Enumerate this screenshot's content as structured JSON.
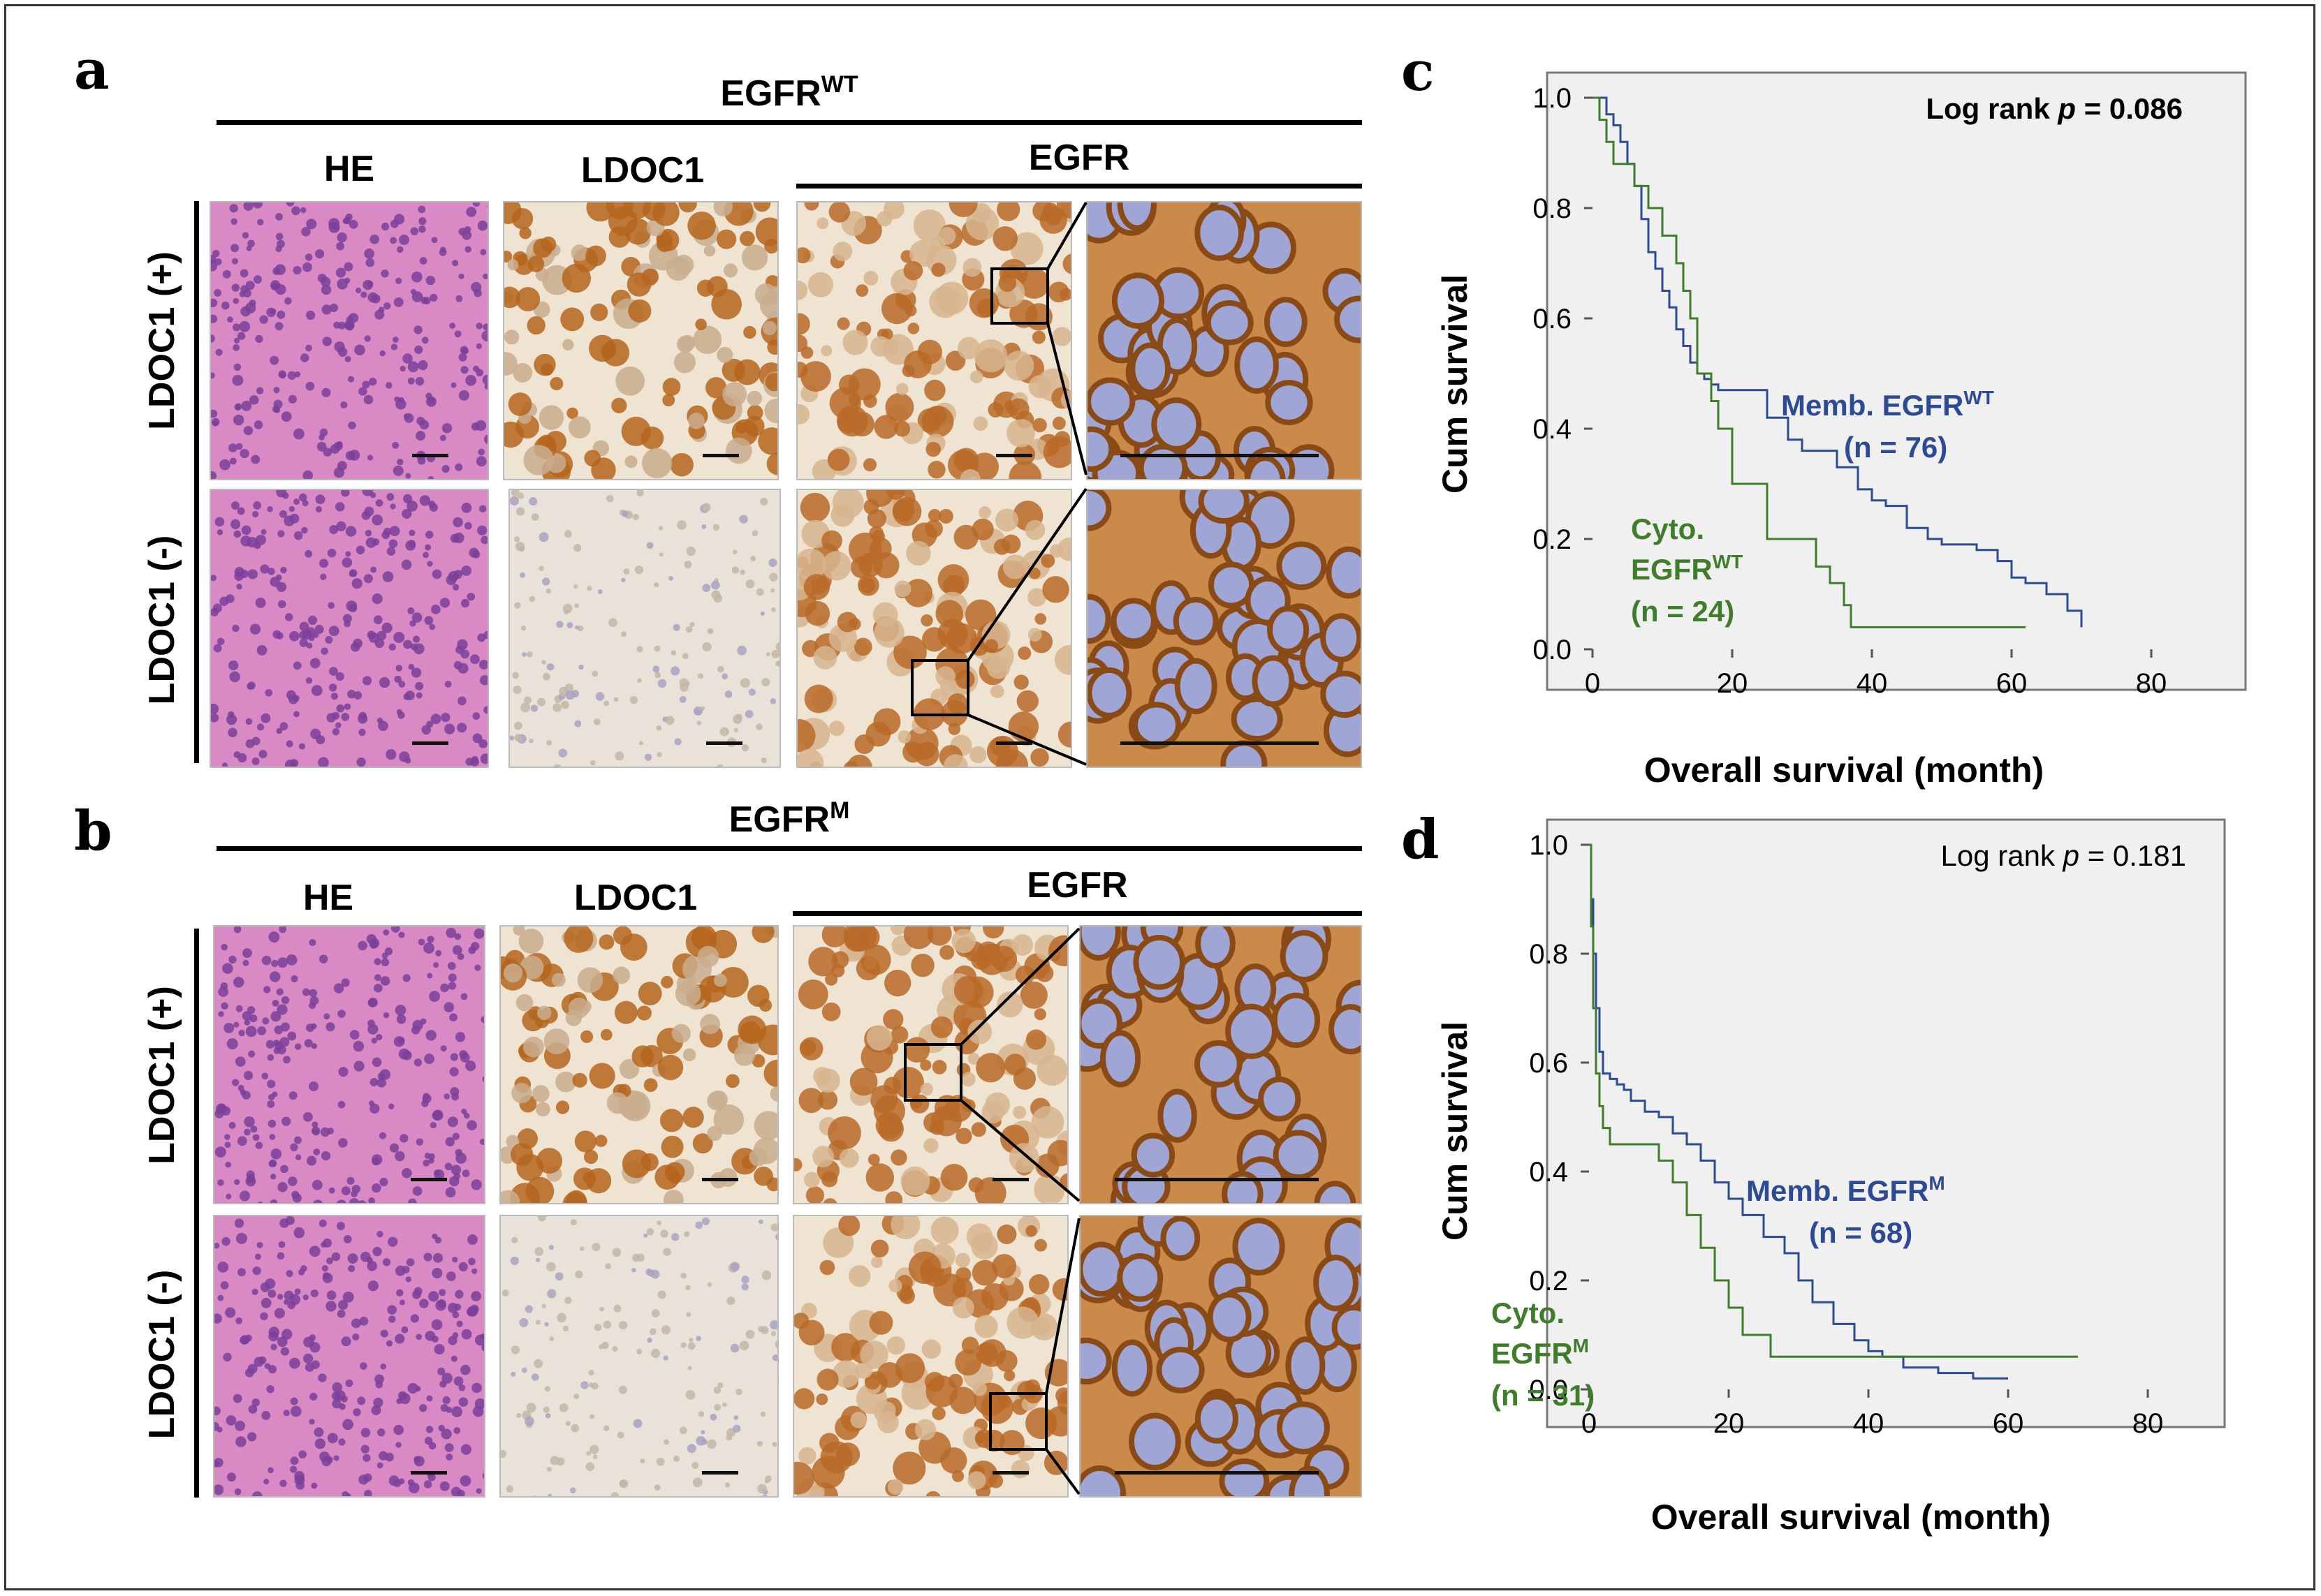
{
  "panels": {
    "a": {
      "letter": "a",
      "group_main": "EGFR",
      "group_sup": "WT",
      "columns": {
        "he": "HE",
        "ldoc1": "LDOC1",
        "egfr": "EGFR"
      },
      "rows": {
        "pos": "LDOC1 (+)",
        "neg": "LDOC1 (-)"
      }
    },
    "b": {
      "letter": "b",
      "group_main": "EGFR",
      "group_sup": "M",
      "columns": {
        "he": "HE",
        "ldoc1": "LDOC1",
        "egfr": "EGFR"
      },
      "rows": {
        "pos": "LDOC1 (+)",
        "neg": "LDOC1 (-)"
      }
    },
    "c": {
      "letter": "c",
      "logrank_prefix": "Log rank ",
      "logrank_p": "p",
      "logrank_value": " = 0.086",
      "memb_label": "Memb. EGFR",
      "memb_sup": "WT",
      "memb_n": "(n = 76)",
      "cyto_label": "Cyto.",
      "cyto_label2": "EGFR",
      "cyto_sup": "WT",
      "cyto_n": "(n = 24)"
    },
    "d": {
      "letter": "d",
      "logrank_prefix": "Log rank ",
      "logrank_p": "p",
      "logrank_value": " = 0.181",
      "memb_label": "Memb. EGFR",
      "memb_sup": "M",
      "memb_n": "(n = 68)",
      "cyto_label": "Cyto.",
      "cyto_label2": "EGFR",
      "cyto_sup": "M",
      "cyto_n": "(n = 31)"
    }
  },
  "colors": {
    "he_bg": "#d98ac4",
    "he_cell": "#7a3f9a",
    "ldoc_pos_bg": "#efe4d2",
    "ldoc_pos_stain": "#b5651d",
    "ldoc_neg_bg": "#e9e2d8",
    "egfr_stain": "#b86a28",
    "egfr_bg": "#efe3d2",
    "nucleus": "#9aa0d0",
    "memb": "#2c4b94",
    "cyto": "#3f7d2a",
    "plot_bg": "#f0f0f0"
  },
  "chart_data": [
    {
      "type": "line",
      "panel": "c",
      "xlabel": "Overall survival (month)",
      "ylabel": "Cum survival",
      "xlim": [
        0,
        80
      ],
      "ylim": [
        0,
        1.0
      ],
      "xticks": [
        0,
        20,
        40,
        60,
        80
      ],
      "yticks": [
        0.0,
        0.2,
        0.4,
        0.6,
        0.8,
        1.0
      ],
      "series": [
        {
          "key": "memb",
          "x": [
            0,
            2,
            3,
            4,
            5,
            6,
            7,
            8,
            9,
            10,
            11,
            12,
            13,
            14,
            15,
            16,
            17,
            18,
            20,
            24,
            25,
            28,
            30,
            33,
            35,
            38,
            40,
            42,
            45,
            48,
            50,
            55,
            58,
            60,
            62,
            65,
            68,
            70
          ],
          "y": [
            1.0,
            0.97,
            0.95,
            0.92,
            0.88,
            0.84,
            0.78,
            0.72,
            0.69,
            0.65,
            0.62,
            0.58,
            0.55,
            0.52,
            0.5,
            0.49,
            0.48,
            0.47,
            0.47,
            0.47,
            0.42,
            0.38,
            0.36,
            0.36,
            0.33,
            0.29,
            0.27,
            0.26,
            0.22,
            0.2,
            0.19,
            0.18,
            0.16,
            0.13,
            0.12,
            0.1,
            0.07,
            0.04
          ]
        },
        {
          "key": "cyto",
          "x": [
            0,
            1,
            2,
            3,
            5,
            6,
            8,
            10,
            12,
            13,
            14,
            15,
            17,
            18,
            20,
            24,
            25,
            30,
            32,
            34,
            36,
            37,
            40,
            62
          ],
          "y": [
            1.0,
            0.96,
            0.92,
            0.88,
            0.88,
            0.84,
            0.8,
            0.75,
            0.7,
            0.65,
            0.6,
            0.5,
            0.45,
            0.4,
            0.3,
            0.3,
            0.2,
            0.2,
            0.15,
            0.12,
            0.08,
            0.04,
            0.04,
            0.04
          ]
        }
      ]
    },
    {
      "type": "line",
      "panel": "d",
      "xlabel": "Overall survival (month)",
      "ylabel": "Cum survival",
      "xlim": [
        0,
        80
      ],
      "ylim": [
        0,
        1.0
      ],
      "xticks": [
        0,
        20,
        40,
        60,
        80
      ],
      "yticks": [
        0.0,
        0.2,
        0.4,
        0.6,
        0.8,
        1.0
      ],
      "series": [
        {
          "key": "memb",
          "x": [
            0,
            0.3,
            0.6,
            1,
            1.5,
            2,
            3,
            4,
            5,
            6,
            8,
            10,
            12,
            14,
            16,
            18,
            20,
            22,
            25,
            28,
            30,
            32,
            35,
            38,
            40,
            42,
            45,
            50,
            55,
            60
          ],
          "y": [
            1.0,
            0.9,
            0.8,
            0.7,
            0.62,
            0.58,
            0.57,
            0.56,
            0.55,
            0.53,
            0.51,
            0.5,
            0.47,
            0.45,
            0.42,
            0.38,
            0.35,
            0.32,
            0.28,
            0.25,
            0.2,
            0.16,
            0.12,
            0.09,
            0.07,
            0.06,
            0.04,
            0.03,
            0.02,
            0.02
          ]
        },
        {
          "key": "cyto",
          "x": [
            0,
            0.3,
            0.6,
            1,
            1.5,
            2,
            3,
            5,
            8,
            10,
            12,
            14,
            16,
            18,
            20,
            22,
            25,
            26,
            45,
            70
          ],
          "y": [
            1.0,
            0.85,
            0.7,
            0.58,
            0.52,
            0.48,
            0.45,
            0.45,
            0.45,
            0.42,
            0.38,
            0.32,
            0.26,
            0.2,
            0.15,
            0.1,
            0.1,
            0.06,
            0.06,
            0.06
          ]
        }
      ]
    }
  ]
}
